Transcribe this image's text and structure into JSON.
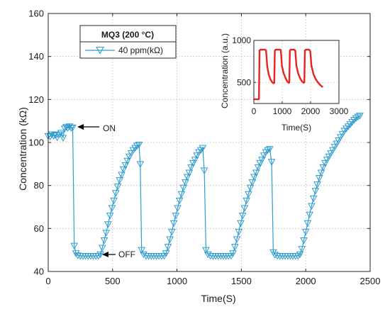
{
  "chart_data": [
    {
      "type": "line",
      "xlabel": "Time(S)",
      "ylabel": "Concentration (kΩ)",
      "xlim": [
        0,
        2500
      ],
      "ylim": [
        40,
        160
      ],
      "xticks": [
        0,
        500,
        1000,
        1500,
        2000,
        2500
      ],
      "yticks": [
        40,
        60,
        80,
        100,
        120,
        140,
        160
      ],
      "grid": true,
      "legend_title": "MQ3 (200 °C)",
      "legend_position": "top-left",
      "colors": {
        "series": "#2f9ccf",
        "axis": "#262626",
        "grid": "#c8c8c8"
      },
      "annotations": [
        {
          "text": "ON",
          "x": 235,
          "y": 108
        },
        {
          "text": "OFF",
          "x": 445,
          "y": 47
        }
      ],
      "series": [
        {
          "name": "40 ppm(kΩ)",
          "marker": "triangle-down",
          "points": [
            [
              0,
              103
            ],
            [
              15,
              102.8
            ],
            [
              28,
              103.8
            ],
            [
              42,
              103.2
            ],
            [
              55,
              103.5
            ],
            [
              70,
              102.4
            ],
            [
              85,
              103.8
            ],
            [
              100,
              104.5
            ],
            [
              115,
              102.2
            ],
            [
              128,
              106.5
            ],
            [
              140,
              107.2
            ],
            [
              152,
              106.8
            ],
            [
              165,
              107.5
            ],
            [
              178,
              106.8
            ],
            [
              190,
              107
            ],
            [
              202,
              52
            ],
            [
              215,
              48.5
            ],
            [
              230,
              47.5
            ],
            [
              250,
              47.2
            ],
            [
              270,
              47.2
            ],
            [
              290,
              47.2
            ],
            [
              310,
              47.2
            ],
            [
              330,
              47.2
            ],
            [
              350,
              47.2
            ],
            [
              370,
              47.2
            ],
            [
              390,
              47.3
            ],
            [
              405,
              48
            ],
            [
              420,
              51
            ],
            [
              435,
              54.5
            ],
            [
              450,
              58
            ],
            [
              465,
              62
            ],
            [
              480,
              66
            ],
            [
              495,
              69.5
            ],
            [
              510,
              73
            ],
            [
              525,
              76.5
            ],
            [
              540,
              79.5
            ],
            [
              555,
              82.5
            ],
            [
              570,
              85
            ],
            [
              585,
              87.5
            ],
            [
              600,
              89.5
            ],
            [
              615,
              91.5
            ],
            [
              630,
              93.5
            ],
            [
              645,
              95
            ],
            [
              660,
              96.5
            ],
            [
              675,
              97.5
            ],
            [
              690,
              98.5
            ],
            [
              705,
              99
            ],
            [
              715,
              90
            ],
            [
              725,
              50
            ],
            [
              740,
              48
            ],
            [
              760,
              47.3
            ],
            [
              780,
              47.2
            ],
            [
              800,
              47.2
            ],
            [
              820,
              47.2
            ],
            [
              840,
              47.2
            ],
            [
              860,
              47.2
            ],
            [
              880,
              47.2
            ],
            [
              900,
              47.3
            ],
            [
              915,
              48.5
            ],
            [
              930,
              51.5
            ],
            [
              945,
              55
            ],
            [
              960,
              58.5
            ],
            [
              975,
              62.5
            ],
            [
              990,
              66
            ],
            [
              1005,
              69.5
            ],
            [
              1020,
              73
            ],
            [
              1035,
              76
            ],
            [
              1050,
              79
            ],
            [
              1065,
              81.5
            ],
            [
              1080,
              84
            ],
            [
              1095,
              86
            ],
            [
              1110,
              88.5
            ],
            [
              1125,
              90.5
            ],
            [
              1140,
              92
            ],
            [
              1155,
              94
            ],
            [
              1170,
              95.5
            ],
            [
              1185,
              96.5
            ],
            [
              1200,
              97.5
            ],
            [
              1212,
              87
            ],
            [
              1225,
              50
            ],
            [
              1240,
              48
            ],
            [
              1260,
              47.3
            ],
            [
              1280,
              47.2
            ],
            [
              1300,
              47.2
            ],
            [
              1320,
              47.2
            ],
            [
              1340,
              47.2
            ],
            [
              1360,
              47.2
            ],
            [
              1380,
              47.2
            ],
            [
              1400,
              47.2
            ],
            [
              1420,
              47.3
            ],
            [
              1435,
              48.5
            ],
            [
              1450,
              51.5
            ],
            [
              1465,
              55
            ],
            [
              1480,
              58.5
            ],
            [
              1495,
              62.5
            ],
            [
              1510,
              66
            ],
            [
              1525,
              69.5
            ],
            [
              1540,
              73
            ],
            [
              1555,
              76
            ],
            [
              1570,
              79
            ],
            [
              1585,
              81.5
            ],
            [
              1600,
              84
            ],
            [
              1615,
              86
            ],
            [
              1630,
              88.5
            ],
            [
              1645,
              90.5
            ],
            [
              1660,
              92
            ],
            [
              1675,
              94
            ],
            [
              1690,
              95.5
            ],
            [
              1705,
              96.5
            ],
            [
              1720,
              97
            ],
            [
              1735,
              91
            ],
            [
              1748,
              49
            ],
            [
              1760,
              47.8
            ],
            [
              1780,
              47.3
            ],
            [
              1800,
              47.2
            ],
            [
              1820,
              47.2
            ],
            [
              1840,
              47.2
            ],
            [
              1860,
              47.2
            ],
            [
              1880,
              47.2
            ],
            [
              1900,
              47.2
            ],
            [
              1920,
              47.2
            ],
            [
              1940,
              47.3
            ],
            [
              1955,
              48
            ],
            [
              1970,
              50.5
            ],
            [
              1985,
              54.5
            ],
            [
              2000,
              58.5
            ],
            [
              2015,
              62.5
            ],
            [
              2030,
              66.5
            ],
            [
              2045,
              70.5
            ],
            [
              2060,
              74
            ],
            [
              2075,
              77.5
            ],
            [
              2090,
              80.5
            ],
            [
              2105,
              83.5
            ],
            [
              2120,
              86
            ],
            [
              2135,
              88.5
            ],
            [
              2150,
              90.5
            ],
            [
              2165,
              92
            ],
            [
              2180,
              93.5
            ],
            [
              2195,
              95
            ],
            [
              2210,
              96.5
            ],
            [
              2225,
              98
            ],
            [
              2240,
              99.5
            ],
            [
              2255,
              101
            ],
            [
              2270,
              102.5
            ],
            [
              2285,
              104
            ],
            [
              2300,
              105.5
            ],
            [
              2315,
              106.5
            ],
            [
              2330,
              107.5
            ],
            [
              2345,
              108.5
            ],
            [
              2360,
              109.5
            ],
            [
              2375,
              110.5
            ],
            [
              2390,
              111.3
            ],
            [
              2405,
              112
            ],
            [
              2420,
              112.5
            ]
          ]
        }
      ]
    },
    {
      "type": "line",
      "inset": true,
      "xlabel": "Time(S)",
      "ylabel": "Concentration (a.u.)",
      "xlim": [
        0,
        3000
      ],
      "ylim": [
        250,
        1000
      ],
      "xticks": [
        0,
        1000,
        2000,
        3000
      ],
      "yticks": [
        500,
        1000
      ],
      "grid": true,
      "colors": {
        "series": "#e8231f",
        "axis": "#262626",
        "grid": "#c8c8c8"
      },
      "series": [
        {
          "points": [
            [
              0,
              300
            ],
            [
              150,
              300
            ],
            [
              180,
              302
            ],
            [
              200,
              880
            ],
            [
              230,
              890
            ],
            [
              300,
              890
            ],
            [
              400,
              890
            ],
            [
              430,
              880
            ],
            [
              470,
              700
            ],
            [
              520,
              600
            ],
            [
              580,
              540
            ],
            [
              640,
              505
            ],
            [
              690,
              490
            ],
            [
              720,
              495
            ],
            [
              740,
              880
            ],
            [
              770,
              890
            ],
            [
              900,
              890
            ],
            [
              950,
              885
            ],
            [
              990,
              700
            ],
            [
              1050,
              610
            ],
            [
              1120,
              550
            ],
            [
              1180,
              510
            ],
            [
              1230,
              495
            ],
            [
              1250,
              500
            ],
            [
              1270,
              880
            ],
            [
              1300,
              890
            ],
            [
              1420,
              890
            ],
            [
              1460,
              880
            ],
            [
              1500,
              700
            ],
            [
              1560,
              610
            ],
            [
              1630,
              550
            ],
            [
              1700,
              510
            ],
            [
              1760,
              495
            ],
            [
              1780,
              505
            ],
            [
              1800,
              880
            ],
            [
              1830,
              890
            ],
            [
              1950,
              890
            ],
            [
              1990,
              870
            ],
            [
              2030,
              700
            ],
            [
              2100,
              600
            ],
            [
              2180,
              540
            ],
            [
              2260,
              500
            ],
            [
              2340,
              470
            ],
            [
              2430,
              445
            ]
          ]
        }
      ]
    }
  ]
}
